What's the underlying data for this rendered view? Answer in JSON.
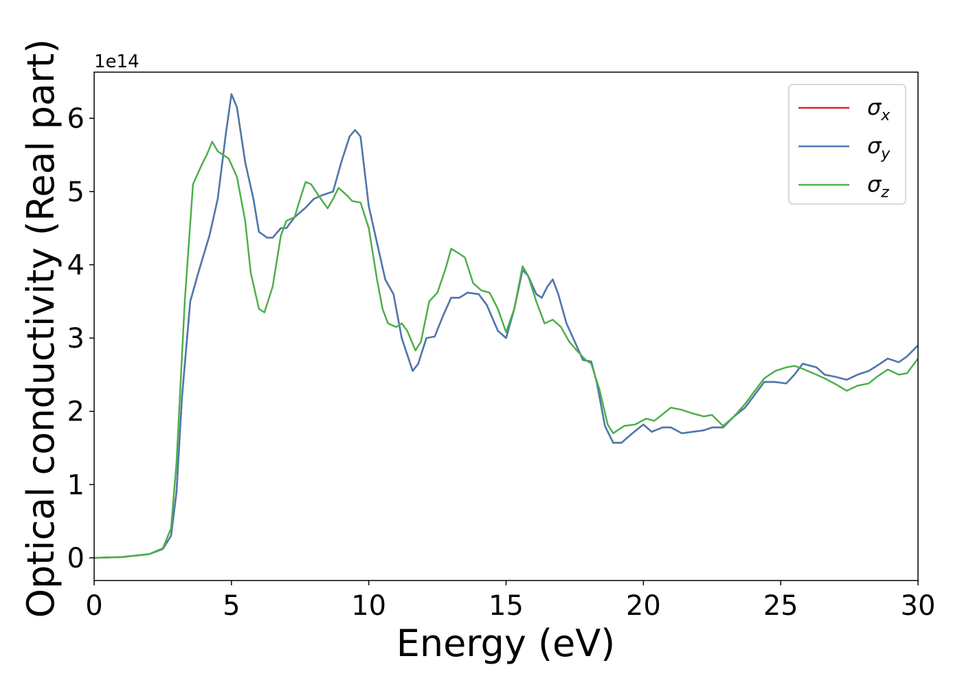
{
  "chart_data": {
    "type": "line",
    "xlabel": "Energy (eV)",
    "ylabel": "Optical conductivity (Real part)",
    "y_offset": "1e14",
    "xlim": [
      0,
      30
    ],
    "xticks": [
      0,
      5,
      10,
      15,
      20,
      25,
      30
    ],
    "ylim": [
      -0.31,
      6.63
    ],
    "yticks": [
      0,
      1,
      2,
      3,
      4,
      5,
      6
    ],
    "legend": "upper right",
    "series": [
      {
        "name": "σx",
        "color": "#d62728",
        "x": [
          0,
          1,
          2,
          2.5,
          2.8,
          3.0,
          3.2,
          3.5,
          3.8,
          4.2,
          4.5,
          4.8,
          5.0,
          5.2,
          5.5,
          5.8,
          6.0,
          6.3,
          6.5,
          6.8,
          7.0,
          7.3,
          7.7,
          8.0,
          8.3,
          8.7,
          9.0,
          9.3,
          9.5,
          9.7,
          10.0,
          10.3,
          10.6,
          10.9,
          11.2,
          11.6,
          11.8,
          12.1,
          12.4,
          12.7,
          13.0,
          13.3,
          13.6,
          14.0,
          14.3,
          14.7,
          15.0,
          15.3,
          15.6,
          15.8,
          16.1,
          16.3,
          16.5,
          16.7,
          16.9,
          17.2,
          17.5,
          17.8,
          18.1,
          18.3,
          18.6,
          18.9,
          19.2,
          19.6,
          20.0,
          20.3,
          20.7,
          21.0,
          21.4,
          21.8,
          22.2,
          22.5,
          22.9,
          23.3,
          23.7,
          24.0,
          24.4,
          24.8,
          25.2,
          25.5,
          25.8,
          26.3,
          26.6,
          27.0,
          27.4,
          27.8,
          28.2,
          28.5,
          28.9,
          29.3,
          29.6,
          30.0
        ],
        "values": [
          0,
          0.01,
          0.05,
          0.12,
          0.3,
          0.9,
          2.2,
          3.5,
          3.9,
          4.4,
          4.9,
          5.8,
          6.33,
          6.15,
          5.4,
          4.9,
          4.45,
          4.37,
          4.37,
          4.5,
          4.5,
          4.65,
          4.78,
          4.9,
          4.95,
          5.0,
          5.4,
          5.75,
          5.84,
          5.75,
          4.8,
          4.3,
          3.8,
          3.6,
          3.0,
          2.55,
          2.65,
          3.0,
          3.02,
          3.3,
          3.55,
          3.55,
          3.62,
          3.6,
          3.45,
          3.1,
          3.0,
          3.4,
          3.93,
          3.85,
          3.6,
          3.55,
          3.7,
          3.8,
          3.6,
          3.2,
          2.95,
          2.7,
          2.68,
          2.4,
          1.8,
          1.57,
          1.57,
          1.7,
          1.82,
          1.72,
          1.78,
          1.78,
          1.7,
          1.72,
          1.74,
          1.78,
          1.78,
          1.93,
          2.05,
          2.2,
          2.4,
          2.4,
          2.38,
          2.5,
          2.65,
          2.6,
          2.5,
          2.47,
          2.43,
          2.5,
          2.55,
          2.62,
          2.72,
          2.67,
          2.75,
          2.9
        ]
      },
      {
        "name": "σy",
        "color": "#4a7bb0",
        "x": [
          0,
          1,
          2,
          2.5,
          2.8,
          3.0,
          3.2,
          3.5,
          3.8,
          4.2,
          4.5,
          4.8,
          5.0,
          5.2,
          5.5,
          5.8,
          6.0,
          6.3,
          6.5,
          6.8,
          7.0,
          7.3,
          7.7,
          8.0,
          8.3,
          8.7,
          9.0,
          9.3,
          9.5,
          9.7,
          10.0,
          10.3,
          10.6,
          10.9,
          11.2,
          11.6,
          11.8,
          12.1,
          12.4,
          12.7,
          13.0,
          13.3,
          13.6,
          14.0,
          14.3,
          14.7,
          15.0,
          15.3,
          15.6,
          15.8,
          16.1,
          16.3,
          16.5,
          16.7,
          16.9,
          17.2,
          17.5,
          17.8,
          18.1,
          18.3,
          18.6,
          18.9,
          19.2,
          19.6,
          20.0,
          20.3,
          20.7,
          21.0,
          21.4,
          21.8,
          22.2,
          22.5,
          22.9,
          23.3,
          23.7,
          24.0,
          24.4,
          24.8,
          25.2,
          25.5,
          25.8,
          26.3,
          26.6,
          27.0,
          27.4,
          27.8,
          28.2,
          28.5,
          28.9,
          29.3,
          29.6,
          30.0
        ],
        "values": [
          0,
          0.01,
          0.05,
          0.12,
          0.3,
          0.9,
          2.2,
          3.5,
          3.9,
          4.4,
          4.9,
          5.8,
          6.33,
          6.15,
          5.4,
          4.9,
          4.45,
          4.37,
          4.37,
          4.5,
          4.5,
          4.65,
          4.78,
          4.9,
          4.95,
          5.0,
          5.4,
          5.75,
          5.84,
          5.75,
          4.8,
          4.3,
          3.8,
          3.6,
          3.0,
          2.55,
          2.65,
          3.0,
          3.02,
          3.3,
          3.55,
          3.55,
          3.62,
          3.6,
          3.45,
          3.1,
          3.0,
          3.4,
          3.93,
          3.85,
          3.6,
          3.55,
          3.7,
          3.8,
          3.6,
          3.2,
          2.95,
          2.7,
          2.68,
          2.4,
          1.8,
          1.57,
          1.57,
          1.7,
          1.82,
          1.72,
          1.78,
          1.78,
          1.7,
          1.72,
          1.74,
          1.78,
          1.78,
          1.93,
          2.05,
          2.2,
          2.4,
          2.4,
          2.38,
          2.5,
          2.65,
          2.6,
          2.5,
          2.47,
          2.43,
          2.5,
          2.55,
          2.62,
          2.72,
          2.67,
          2.75,
          2.9
        ]
      },
      {
        "name": "σz",
        "color": "#4daf4a",
        "x": [
          0,
          1,
          2,
          2.5,
          2.8,
          3.0,
          3.3,
          3.6,
          3.9,
          4.1,
          4.3,
          4.5,
          4.7,
          4.9,
          5.2,
          5.5,
          5.7,
          6.0,
          6.2,
          6.5,
          6.8,
          7.0,
          7.3,
          7.5,
          7.7,
          7.9,
          8.2,
          8.5,
          8.7,
          8.9,
          9.2,
          9.4,
          9.7,
          10.0,
          10.3,
          10.5,
          10.7,
          11.0,
          11.2,
          11.4,
          11.7,
          11.9,
          12.2,
          12.5,
          12.8,
          13.0,
          13.3,
          13.5,
          13.8,
          14.1,
          14.4,
          14.7,
          15.0,
          15.3,
          15.6,
          15.8,
          16.1,
          16.4,
          16.7,
          17.0,
          17.3,
          17.6,
          17.9,
          18.1,
          18.4,
          18.7,
          18.9,
          19.3,
          19.7,
          20.1,
          20.4,
          20.7,
          21.0,
          21.4,
          21.8,
          22.2,
          22.5,
          22.9,
          23.3,
          23.7,
          24.0,
          24.4,
          24.8,
          25.2,
          25.5,
          25.8,
          26.3,
          26.6,
          27.0,
          27.4,
          27.8,
          28.2,
          28.5,
          28.9,
          29.3,
          29.6,
          30.0
        ],
        "values": [
          0,
          0.01,
          0.05,
          0.13,
          0.4,
          1.3,
          3.5,
          5.1,
          5.35,
          5.5,
          5.68,
          5.55,
          5.5,
          5.45,
          5.2,
          4.6,
          3.9,
          3.4,
          3.35,
          3.7,
          4.4,
          4.6,
          4.65,
          4.9,
          5.13,
          5.1,
          4.93,
          4.77,
          4.9,
          5.05,
          4.95,
          4.87,
          4.85,
          4.5,
          3.8,
          3.4,
          3.2,
          3.15,
          3.2,
          3.1,
          2.83,
          2.95,
          3.5,
          3.62,
          3.95,
          4.22,
          4.15,
          4.1,
          3.75,
          3.65,
          3.62,
          3.4,
          3.08,
          3.4,
          3.98,
          3.85,
          3.5,
          3.2,
          3.25,
          3.15,
          2.95,
          2.82,
          2.7,
          2.65,
          2.3,
          1.82,
          1.7,
          1.8,
          1.82,
          1.9,
          1.87,
          1.96,
          2.05,
          2.02,
          1.97,
          1.93,
          1.95,
          1.8,
          1.93,
          2.1,
          2.25,
          2.45,
          2.55,
          2.6,
          2.62,
          2.58,
          2.5,
          2.45,
          2.37,
          2.28,
          2.35,
          2.38,
          2.47,
          2.57,
          2.5,
          2.52,
          2.72
        ]
      }
    ]
  }
}
